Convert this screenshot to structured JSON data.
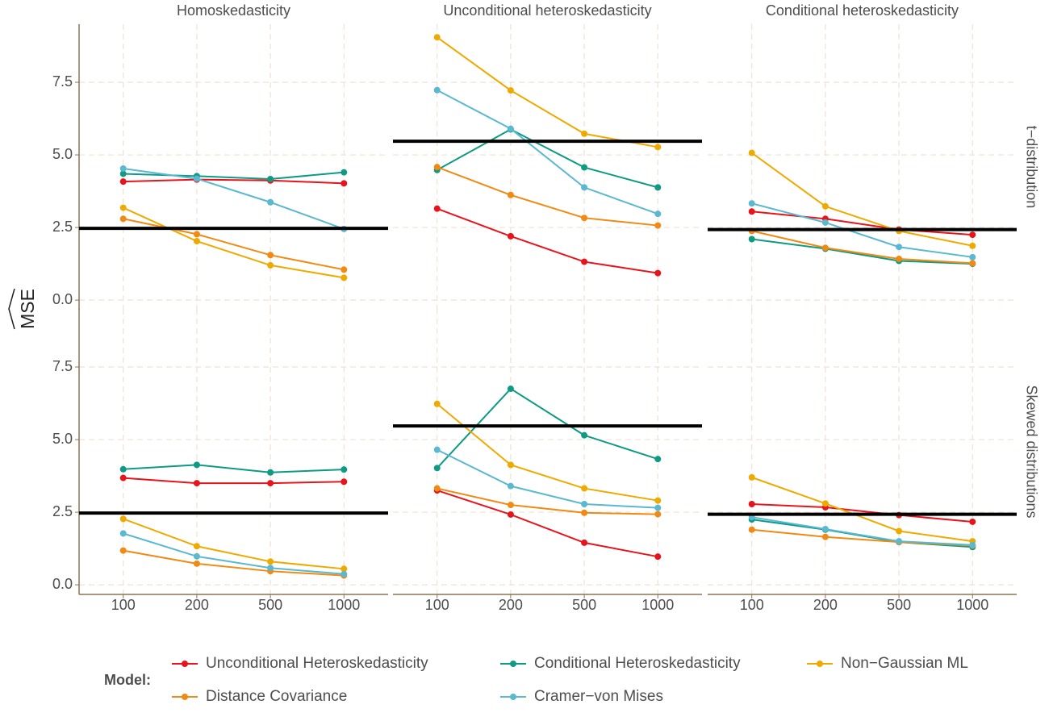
{
  "chart_data": {
    "type": "line",
    "y_label": "MSE",
    "columns": [
      "Homoskedasticity",
      "Unconditional heteroskedasticity",
      "Conditional heteroskedasticity"
    ],
    "rows": [
      "t−distribution",
      "Skewed distributions"
    ],
    "categories": [
      "100",
      "200",
      "500",
      "1000"
    ],
    "ylim": [
      -0.33,
      9.5
    ],
    "yticks": [
      {
        "value": 0,
        "label": "0.0"
      },
      2.5,
      {
        "value": 5,
        "label": "5.0"
      },
      7.5
    ],
    "grid": true,
    "legend_title": "Model:",
    "reference_lines": [
      2.47,
      5.47,
      2.43,
      2.47,
      5.47,
      2.43
    ],
    "series": [
      {
        "name": "Unconditional Heteroskedasticity",
        "color": "#e8141c",
        "values": [
          [
            4.08,
            4.15,
            4.12,
            4.02
          ],
          [
            3.15,
            2.2,
            1.32,
            0.93
          ],
          [
            3.05,
            2.8,
            2.43,
            2.25
          ],
          [
            3.68,
            3.5,
            3.5,
            3.55
          ],
          [
            3.25,
            2.42,
            1.45,
            0.97
          ],
          [
            2.78,
            2.67,
            2.4,
            2.17
          ]
        ]
      },
      {
        "name": "Conditional Heteroskedasticity",
        "color": "#0e9a83",
        "values": [
          [
            4.35,
            4.27,
            4.17,
            4.4
          ],
          [
            4.48,
            5.88,
            4.57,
            3.88
          ],
          [
            2.1,
            1.77,
            1.35,
            1.25
          ],
          [
            3.98,
            4.13,
            3.87,
            3.97
          ],
          [
            4.02,
            6.75,
            5.15,
            4.33
          ],
          [
            2.25,
            1.9,
            1.47,
            1.3
          ]
        ]
      },
      {
        "name": "Non−Gaussian ML",
        "color": "#efaa00",
        "values": [
          [
            3.18,
            2.03,
            1.2,
            0.77
          ],
          [
            9.05,
            7.22,
            5.73,
            5.27
          ],
          [
            5.07,
            3.23,
            2.38,
            1.87
          ],
          [
            2.27,
            1.33,
            0.8,
            0.55
          ],
          [
            6.23,
            4.13,
            3.32,
            2.9
          ],
          [
            3.7,
            2.8,
            1.85,
            1.5
          ]
        ]
      },
      {
        "name": "Distance Covariance",
        "color": "#f08a12",
        "values": [
          [
            2.8,
            2.27,
            1.55,
            1.05
          ],
          [
            4.58,
            3.62,
            2.83,
            2.57
          ],
          [
            2.38,
            1.8,
            1.42,
            1.27
          ],
          [
            1.18,
            0.73,
            0.47,
            0.32
          ],
          [
            3.32,
            2.75,
            2.48,
            2.43
          ],
          [
            1.9,
            1.65,
            1.47,
            1.35
          ]
        ]
      },
      {
        "name": "Cramer−von Mises",
        "color": "#5ab8d0",
        "values": [
          [
            4.53,
            4.18,
            3.37,
            2.45
          ],
          [
            7.23,
            5.9,
            3.88,
            2.97
          ],
          [
            3.33,
            2.67,
            1.83,
            1.48
          ],
          [
            1.77,
            0.98,
            0.58,
            0.37
          ],
          [
            4.65,
            3.4,
            2.78,
            2.65
          ],
          [
            2.33,
            1.92,
            1.5,
            1.37
          ]
        ]
      }
    ]
  }
}
